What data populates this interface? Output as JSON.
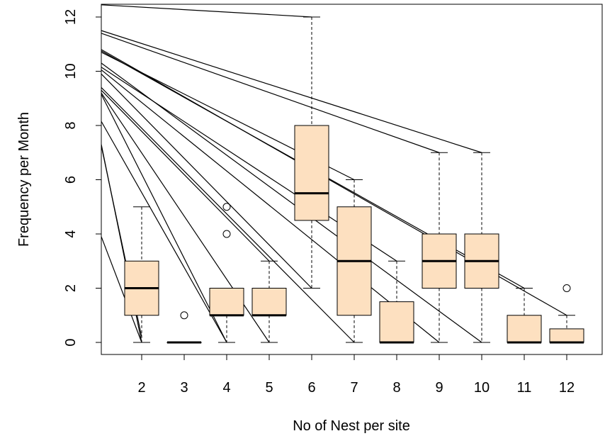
{
  "chart_data": {
    "type": "boxplot",
    "title": "",
    "xlabel": "No of Nest per site",
    "ylabel": "Frequency per Month",
    "ylim": [
      -0.5,
      12.5
    ],
    "yticks": [
      0,
      2,
      4,
      6,
      8,
      10,
      12
    ],
    "box_fill": "#fde0c0",
    "line_color": "#000000",
    "boxes": [
      {
        "label": "2",
        "min": 0,
        "q1": 1,
        "median": 2,
        "q3": 3,
        "max": 5,
        "outliers": []
      },
      {
        "label": "3",
        "min": 0,
        "q1": 0,
        "median": 0,
        "q3": 0,
        "max": 0,
        "outliers": [
          1
        ]
      },
      {
        "label": "4",
        "min": 0,
        "q1": 1,
        "median": 1,
        "q3": 2,
        "max": 2,
        "outliers": [
          4,
          5
        ]
      },
      {
        "label": "5",
        "min": 0,
        "q1": 1,
        "median": 1,
        "q3": 2,
        "max": 3,
        "outliers": []
      },
      {
        "label": "6",
        "min": 2,
        "q1": 4.5,
        "median": 5.5,
        "q3": 8,
        "max": 12,
        "outliers": []
      },
      {
        "label": "7",
        "min": 0,
        "q1": 1,
        "median": 3,
        "q3": 5,
        "max": 6,
        "outliers": []
      },
      {
        "label": "8",
        "min": 0,
        "q1": 0,
        "median": 0,
        "q3": 1.5,
        "max": 3,
        "outliers": []
      },
      {
        "label": "9",
        "min": 0,
        "q1": 2,
        "median": 3,
        "q3": 4,
        "max": 7,
        "outliers": []
      },
      {
        "label": "10",
        "min": 0,
        "q1": 2,
        "median": 3,
        "q3": 4,
        "max": 7,
        "outliers": []
      },
      {
        "label": "11",
        "min": 0,
        "q1": 0,
        "median": 0,
        "q3": 1,
        "max": 2,
        "outliers": []
      },
      {
        "label": "12",
        "min": 0,
        "q1": 0,
        "median": 0,
        "q3": 0.5,
        "max": 1,
        "outliers": [
          2
        ]
      }
    ],
    "lines": [
      {
        "from_y": 12.45,
        "to_box": "6",
        "to_y": 12
      },
      {
        "from_y": 11.5,
        "to_box": "10",
        "to_y": 7
      },
      {
        "from_y": 11.4,
        "to_box": "9",
        "to_y": 7
      },
      {
        "from_y": 10.8,
        "to_box": "12",
        "to_y": 1
      },
      {
        "from_y": 10.75,
        "to_box": "11",
        "to_y": 2
      },
      {
        "from_y": 10.7,
        "to_box": "7",
        "to_y": 6
      },
      {
        "from_y": 10.3,
        "to_box": "10",
        "to_y": 0
      },
      {
        "from_y": 10.15,
        "to_box": "8",
        "to_y": 3
      },
      {
        "from_y": 10.05,
        "to_box": "9",
        "to_y": 0
      },
      {
        "from_y": 9.9,
        "to_box": "6",
        "to_y": 2
      },
      {
        "from_y": 9.4,
        "to_box": "7",
        "to_y": 0
      },
      {
        "from_y": 9.3,
        "to_box": "5",
        "to_y": 3
      },
      {
        "from_y": 9.2,
        "to_box": "5",
        "to_y": 0
      },
      {
        "from_y": 9.15,
        "to_box": "4",
        "to_y": 0
      },
      {
        "from_y": 8.15,
        "to_box": "4",
        "to_y": 0
      },
      {
        "from_y": 7.3,
        "to_box": "2",
        "to_y": 0
      },
      {
        "from_y": 7.25,
        "to_box": "2",
        "to_y": 0.2
      },
      {
        "from_y": 3.9,
        "to_box": "2",
        "to_y": 0
      }
    ]
  }
}
